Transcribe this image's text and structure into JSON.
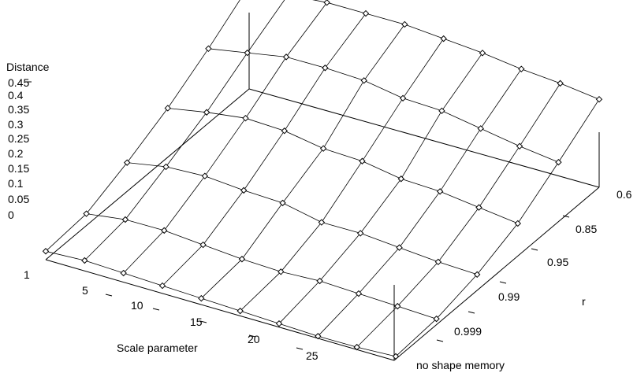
{
  "chart_data": {
    "type": "surface3d",
    "title": "",
    "xlabel": "Scale parameter",
    "ylabel": "r",
    "zlabel": "Distance",
    "x_ticks": [
      "1",
      "5",
      "10",
      "15",
      "20",
      "25"
    ],
    "y_ticks": [
      "0.6",
      "0.85",
      "0.95",
      "0.99",
      "0.999",
      "no shape memory"
    ],
    "z_ticks": [
      "0",
      "0.05",
      "0.1",
      "0.15",
      "0.2",
      "0.25",
      "0.3",
      "0.35",
      "0.4",
      "0.45"
    ],
    "zlim": [
      0,
      0.45
    ],
    "grid": false,
    "series": [
      {
        "y": "0.6",
        "values": [
          0.61,
          0.62,
          0.64,
          0.64,
          0.64,
          0.62,
          0.6,
          0.57,
          0.55,
          0.52
        ]
      },
      {
        "y": "0.85",
        "values": [
          0.44,
          0.48,
          0.52,
          0.52,
          0.51,
          0.47,
          0.46,
          0.42,
          0.38,
          0.35
        ]
      },
      {
        "y": "0.95",
        "values": [
          0.29,
          0.33,
          0.36,
          0.35,
          0.31,
          0.3,
          0.26,
          0.25,
          0.22,
          0.19
        ]
      },
      {
        "y": "0.99",
        "values": [
          0.17,
          0.21,
          0.22,
          0.2,
          0.19,
          0.14,
          0.14,
          0.12,
          0.1,
          0.09
        ]
      },
      {
        "y": "0.999",
        "values": [
          0.07,
          0.1,
          0.1,
          0.08,
          0.06,
          0.05,
          0.06,
          0.05,
          0.04,
          0.03
        ]
      },
      {
        "y": "no shape memory",
        "values": [
          0.05,
          0.06,
          0.05,
          0.04,
          0.03,
          0.02,
          0.01,
          0.0,
          0.0,
          0.01
        ]
      }
    ]
  }
}
